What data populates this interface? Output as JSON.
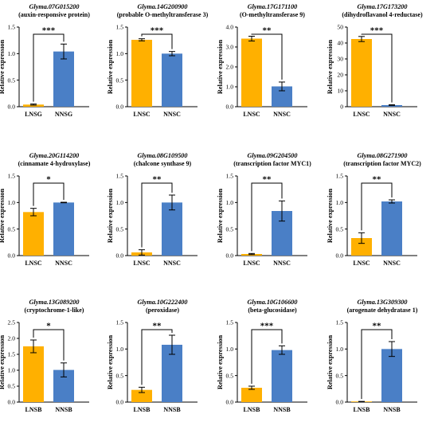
{
  "colors": {
    "first": "#FFB000",
    "second": "#4A7FC6",
    "axis": "#000000"
  },
  "chart_data": [
    {
      "type": "bar",
      "title": "Glyma.07G015200",
      "subtitle": "(auxin-responsive protein)",
      "ylabel": "Relative expression",
      "categories": [
        "LNSG",
        "NNSG"
      ],
      "values": [
        0.04,
        1.04
      ],
      "errors": [
        0.01,
        0.14
      ],
      "ylim": [
        0,
        1.5
      ],
      "yticks": [
        "0.0",
        "0.5",
        "1.0",
        "1.5"
      ],
      "significance": "***"
    },
    {
      "type": "bar",
      "title": "Glyma.14G200900",
      "subtitle": "(probable O-methyltransferase 3)",
      "ylabel": "Relative expression",
      "categories": [
        "LNSC",
        "NNSC"
      ],
      "values": [
        1.26,
        1.0
      ],
      "errors": [
        0.02,
        0.04
      ],
      "ylim": [
        0,
        1.5
      ],
      "yticks": [
        "0.0",
        "0.5",
        "1.0",
        "1.5"
      ],
      "significance": "***"
    },
    {
      "type": "bar",
      "title": "Glyma.17G171100",
      "subtitle": "(O-methyltransferase 9)",
      "ylabel": "Relative expression",
      "categories": [
        "LNSC",
        "NNSC"
      ],
      "values": [
        3.42,
        1.02
      ],
      "errors": [
        0.12,
        0.22
      ],
      "ylim": [
        0,
        4
      ],
      "yticks": [
        "0.0",
        "1.0",
        "2.0",
        "3.0",
        "4.0"
      ],
      "significance": "**"
    },
    {
      "type": "bar",
      "title": "Glyma.17G173200",
      "subtitle": "(dihydroflavanol 4-reductase)",
      "ylabel": "Relative expression",
      "categories": [
        "LNSC",
        "NNSC"
      ],
      "values": [
        42.5,
        1.0
      ],
      "errors": [
        1.6,
        0.2
      ],
      "ylim": [
        0,
        50
      ],
      "yticks": [
        "0",
        "10",
        "20",
        "30",
        "40",
        "50"
      ],
      "significance": "***"
    },
    {
      "type": "bar",
      "title": "Glyma.20G114200",
      "subtitle": "(cinnamate 4-hydroxylase)",
      "ylabel": "Relative expression",
      "categories": [
        "LNSC",
        "NNSC"
      ],
      "values": [
        0.82,
        1.0
      ],
      "errors": [
        0.07,
        0.005
      ],
      "ylim": [
        0,
        1.5
      ],
      "yticks": [
        "0.0",
        "0.5",
        "1.0",
        "1.5"
      ],
      "significance": "*"
    },
    {
      "type": "bar",
      "title": "Glyma.08G109500",
      "subtitle": "(chalcone synthase 9)",
      "ylabel": "Relative expression",
      "categories": [
        "LNSC",
        "NNSC"
      ],
      "values": [
        0.06,
        1.0
      ],
      "errors": [
        0.05,
        0.14
      ],
      "ylim": [
        0,
        1.5
      ],
      "yticks": [
        "0.0",
        "0.5",
        "1.0",
        "1.5"
      ],
      "significance": "**"
    },
    {
      "type": "bar",
      "title": "Glyma.09G204500",
      "subtitle": "(transcription factor MYC1)",
      "ylabel": "Relative expression",
      "categories": [
        "LNSC",
        "NNSC"
      ],
      "values": [
        0.03,
        0.84
      ],
      "errors": [
        0.01,
        0.19
      ],
      "ylim": [
        0,
        1.5
      ],
      "yticks": [
        "0.0",
        "0.5",
        "1.0",
        "1.5"
      ],
      "significance": "**"
    },
    {
      "type": "bar",
      "title": "Glyma.08G271900",
      "subtitle": "(transcription factor MYC2)",
      "ylabel": "Relative expression",
      "categories": [
        "LNSC",
        "NNSC"
      ],
      "values": [
        0.33,
        1.02
      ],
      "errors": [
        0.1,
        0.03
      ],
      "ylim": [
        0,
        1.5
      ],
      "yticks": [
        "0.0",
        "0.5",
        "1.0",
        "1.5"
      ],
      "significance": "**"
    },
    {
      "type": "bar",
      "title": "Glyma.13G089200",
      "subtitle": "(cryptochrome-1-like)",
      "ylabel": "Relative expression",
      "categories": [
        "LNSB",
        "NNSB"
      ],
      "values": [
        1.75,
        1.01
      ],
      "errors": [
        0.2,
        0.22
      ],
      "ylim": [
        0,
        2.5
      ],
      "yticks": [
        "0.0",
        "0.5",
        "1.0",
        "1.5",
        "2.0",
        "2.5"
      ],
      "significance": "*"
    },
    {
      "type": "bar",
      "title": "Glyma.10G222400",
      "subtitle": "(peroxidase)",
      "ylabel": "Relative expression",
      "categories": [
        "LNSB",
        "NNSB"
      ],
      "values": [
        0.23,
        1.08
      ],
      "errors": [
        0.05,
        0.18
      ],
      "ylim": [
        0,
        1.5
      ],
      "yticks": [
        "0.0",
        "0.5",
        "1.0",
        "1.5"
      ],
      "significance": "**"
    },
    {
      "type": "bar",
      "title": "Glyma.10G106600",
      "subtitle": "(beta-glucosidase)",
      "ylabel": "Relative expression",
      "categories": [
        "LNSB",
        "NNSB"
      ],
      "values": [
        0.27,
        0.98
      ],
      "errors": [
        0.03,
        0.08
      ],
      "ylim": [
        0,
        1.5
      ],
      "yticks": [
        "0.0",
        "0.5",
        "1.0",
        "1.5"
      ],
      "significance": "***"
    },
    {
      "type": "bar",
      "title": "Glyma.13G309300",
      "subtitle": "(arogenate dehydratase 1)",
      "ylabel": "Relative expression",
      "categories": [
        "LNSB",
        "NNSB"
      ],
      "values": [
        0.01,
        1.0
      ],
      "errors": [
        0.003,
        0.14
      ],
      "ylim": [
        0,
        1.5
      ],
      "yticks": [
        "0.0",
        "0.5",
        "1.0",
        "1.5"
      ],
      "significance": "**"
    }
  ]
}
